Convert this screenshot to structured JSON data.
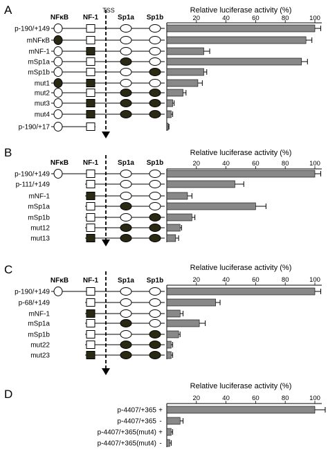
{
  "header": {
    "element_labels": [
      "NFκB",
      "NF-1",
      "Sp1a",
      "Sp1b"
    ],
    "tss_label": "TSS"
  },
  "chart_data": [
    {
      "type": "bar",
      "panel": "A",
      "title": "Relative luciferase activity (%)",
      "xlim": [
        0,
        100
      ],
      "ticks": [
        "20",
        "40",
        "60",
        "80",
        "100"
      ],
      "show_element_header": true,
      "constructs": [
        {
          "name": "p-190/+149",
          "value": 100,
          "error": 4,
          "sites": [
            "open",
            "open",
            "open",
            "open"
          ]
        },
        {
          "name": "mNFκB",
          "value": 94,
          "error": 4,
          "sites": [
            "filled",
            "open",
            "open",
            "open"
          ]
        },
        {
          "name": "mNF-1",
          "value": 25,
          "error": 4,
          "sites": [
            "open",
            "filled",
            "open",
            "open"
          ]
        },
        {
          "name": "mSp1a",
          "value": 91,
          "error": 4,
          "sites": [
            "open",
            "open",
            "filled",
            "open"
          ]
        },
        {
          "name": "mSp1b",
          "value": 25,
          "error": 2,
          "sites": [
            "open",
            "open",
            "open",
            "filled"
          ]
        },
        {
          "name": "mut1",
          "value": 21,
          "error": 3,
          "sites": [
            "filled",
            "filled",
            "open",
            "open"
          ]
        },
        {
          "name": "mut2",
          "value": 11,
          "error": 2,
          "sites": [
            "open",
            "open",
            "filled",
            "filled"
          ]
        },
        {
          "name": "mut3",
          "value": 4,
          "error": 1,
          "sites": [
            "open",
            "filled",
            "filled",
            "filled"
          ]
        },
        {
          "name": "mut4",
          "value": 3,
          "error": 1,
          "sites": [
            "open",
            "filled",
            "filled",
            "filled"
          ]
        },
        {
          "name": "p-190/+17",
          "value": 1,
          "error": 0.5,
          "sites": [
            "open",
            "open",
            "none",
            "none"
          ],
          "short_line": true
        }
      ]
    },
    {
      "type": "bar",
      "panel": "B",
      "title": "Relative luciferase activity (%)",
      "xlim": [
        0,
        100
      ],
      "ticks": [
        "20",
        "40",
        "60",
        "80",
        "100"
      ],
      "show_element_header": true,
      "constructs": [
        {
          "name": "p-190/+149",
          "value": 100,
          "error": 4,
          "sites": [
            "open",
            "open",
            "open",
            "open"
          ]
        },
        {
          "name": "p-111/+149",
          "value": 46,
          "error": 6,
          "sites": [
            "none",
            "open",
            "open",
            "open"
          ]
        },
        {
          "name": "mNF-1",
          "value": 14,
          "error": 3,
          "sites": [
            "none",
            "filled",
            "open",
            "open"
          ]
        },
        {
          "name": "mSp1a",
          "value": 60,
          "error": 7,
          "sites": [
            "none",
            "open",
            "filled",
            "open"
          ]
        },
        {
          "name": "mSp1b",
          "value": 17,
          "error": 2,
          "sites": [
            "none",
            "open",
            "open",
            "filled"
          ]
        },
        {
          "name": "mut12",
          "value": 9,
          "error": 1,
          "sites": [
            "none",
            "open",
            "filled",
            "filled"
          ]
        },
        {
          "name": "mut13",
          "value": 6,
          "error": 2,
          "sites": [
            "none",
            "filled",
            "filled",
            "filled"
          ]
        }
      ]
    },
    {
      "type": "bar",
      "panel": "C",
      "title": "Relative luciferase activity (%)",
      "xlim": [
        0,
        100
      ],
      "ticks": [
        "20",
        "40",
        "60",
        "80",
        "100"
      ],
      "show_element_header": true,
      "constructs": [
        {
          "name": "p-190/+149",
          "value": 100,
          "error": 4,
          "sites": [
            "open",
            "open",
            "open",
            "open"
          ]
        },
        {
          "name": "p-68/+149",
          "value": 33,
          "error": 3,
          "sites": [
            "none",
            "open",
            "open",
            "open"
          ]
        },
        {
          "name": "mNF-1",
          "value": 9,
          "error": 2,
          "sites": [
            "none",
            "filled",
            "open",
            "open"
          ]
        },
        {
          "name": "mSp1a",
          "value": 22,
          "error": 4,
          "sites": [
            "none",
            "open",
            "filled",
            "open"
          ]
        },
        {
          "name": "mSp1b",
          "value": 8,
          "error": 1,
          "sites": [
            "none",
            "open",
            "open",
            "filled"
          ]
        },
        {
          "name": "mut22",
          "value": 3,
          "error": 1,
          "sites": [
            "none",
            "open",
            "filled",
            "filled"
          ]
        },
        {
          "name": "mut23",
          "value": 3,
          "error": 1,
          "sites": [
            "none",
            "filled",
            "filled",
            "filled"
          ]
        }
      ]
    },
    {
      "type": "bar",
      "panel": "D",
      "title": "Relative luciferase activity (%)",
      "xlim": [
        0,
        100
      ],
      "ticks": [
        "20",
        "40",
        "60",
        "80",
        "100"
      ],
      "show_element_header": false,
      "constructs": [
        {
          "name": "p-4407/+365",
          "sign": "+",
          "value": 100,
          "error": 7
        },
        {
          "name": "p-4407/+365",
          "sign": "-",
          "value": 9,
          "error": 2
        },
        {
          "name": "p-4407/+365(mut4)",
          "sign": "+",
          "value": 3,
          "error": 1
        },
        {
          "name": "p-4407/+365(mut4)",
          "sign": "-",
          "value": 2,
          "error": 1
        }
      ]
    }
  ]
}
